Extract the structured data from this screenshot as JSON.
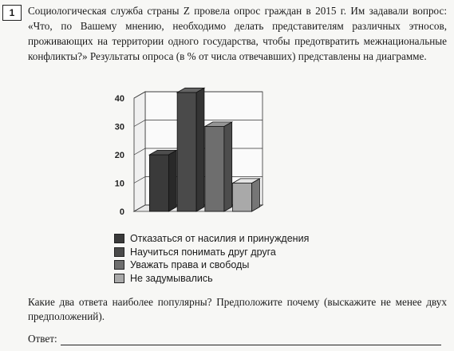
{
  "task": {
    "number": "1",
    "question": "Социологическая служба страны Z провела опрос граждан в 2015 г. Им задавали вопрос: «Что, по Вашему мнению, необходимо делать представителям различных этносов, проживающих на территории одного государства, чтобы предотвратить межнациональные конфликты?» Результаты опроса (в % от числа отвечавших) представлены на диаграмме.",
    "followup": "Какие два ответа наиболее популярны? Предположите почему (выскажите не менее двух предположений).",
    "answer_label": "Ответ:"
  },
  "chart_data": {
    "type": "bar",
    "categories": [
      "Отказаться от насилия и принуждения",
      "Научиться понимать друг друга",
      "Уважать права и свободы",
      "Не задумывались"
    ],
    "values": [
      20,
      42,
      30,
      10
    ],
    "ylim": [
      0,
      40
    ],
    "yticks": [
      "0",
      "10",
      "20",
      "30",
      "40"
    ],
    "grid": true,
    "legend": "bottom",
    "colors": [
      "#3a3a3a",
      "#4a4a4a",
      "#6e6e6e",
      "#a9a9a9"
    ]
  }
}
